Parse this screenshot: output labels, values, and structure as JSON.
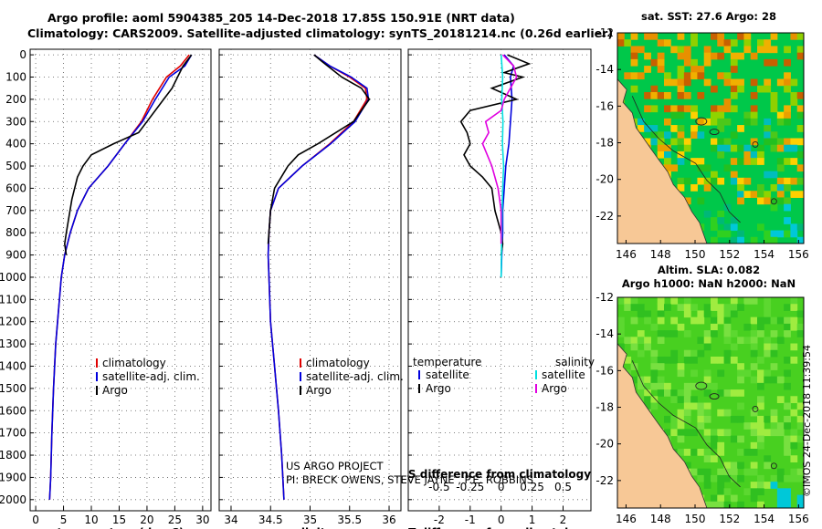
{
  "header": {
    "line1": "Argo profile: aoml 5904385_205 14-Dec-2018 17.85S 150.91E (NRT data)",
    "line2": "Climatology: CARS2009. Satellite-adjusted climatology: synTS_20181214.nc (0.26d earlier)"
  },
  "colors": {
    "climatology": "#e00000",
    "satellite": "#0000dd",
    "argo": "#000000",
    "sal_diff": "#00e0e0",
    "temp_diff": "#e000e0"
  },
  "chart_data": [
    {
      "type": "line",
      "id": "temperature",
      "xlabel": "temperature (deg C)",
      "ylabel": "",
      "xlim": [
        -1,
        31.5
      ],
      "ylim": [
        2050,
        0
      ],
      "xticks": [
        0,
        5,
        10,
        15,
        20,
        25,
        30
      ],
      "yticks": [
        0,
        100,
        200,
        300,
        400,
        500,
        600,
        700,
        800,
        900,
        1000,
        1100,
        1200,
        1300,
        1400,
        1500,
        1600,
        1700,
        1800,
        1900,
        2000
      ],
      "legend": [
        "climatology",
        "satellite-adj. clim.",
        "Argo"
      ],
      "series": [
        {
          "name": "climatology",
          "color": "#e00000",
          "x": [
            27.6,
            26,
            23.5,
            21,
            19,
            16,
            13,
            9.5,
            7.5,
            6.2,
            5.2,
            4.6,
            3.6,
            3.2,
            2.9,
            2.7,
            2.5
          ],
          "y": [
            0,
            50,
            100,
            200,
            300,
            400,
            500,
            600,
            700,
            800,
            900,
            1000,
            1300,
            1500,
            1700,
            1900,
            2000
          ]
        },
        {
          "name": "satellite-adj. clim.",
          "color": "#0000dd",
          "x": [
            28,
            26.8,
            24,
            21.5,
            19.2,
            16,
            13,
            9.5,
            7.5,
            6.2,
            5.2,
            4.6,
            3.6,
            3.2,
            2.9,
            2.7,
            2.5
          ],
          "y": [
            0,
            50,
            100,
            200,
            300,
            400,
            500,
            600,
            700,
            800,
            900,
            1000,
            1300,
            1500,
            1700,
            1900,
            2000
          ]
        },
        {
          "name": "Argo",
          "color": "#000000",
          "x": [
            28,
            26.5,
            25.5,
            24.5,
            23,
            20,
            18.5,
            14,
            10,
            8.5,
            7.5,
            6.5,
            5.5,
            5.2,
            5.5
          ],
          "y": [
            0,
            50,
            100,
            150,
            200,
            300,
            350,
            400,
            450,
            500,
            550,
            650,
            800,
            850,
            900
          ]
        }
      ]
    },
    {
      "type": "line",
      "id": "salinity",
      "xlabel": "salinity",
      "ylabel": "",
      "xlim": [
        33.85,
        36.15
      ],
      "ylim": [
        2050,
        0
      ],
      "xticks": [
        34,
        34.5,
        35,
        35.5,
        36
      ],
      "legend": [
        "climatology",
        "satellite-adj. clim.",
        "Argo"
      ],
      "series": [
        {
          "name": "climatology",
          "color": "#e00000",
          "x": [
            35.05,
            35.25,
            35.5,
            35.7,
            35.72,
            35.55,
            35.25,
            34.9,
            34.6,
            34.5,
            34.48,
            34.47,
            34.48,
            34.5,
            34.55,
            34.6,
            34.64,
            34.67
          ],
          "y": [
            0,
            50,
            100,
            150,
            200,
            300,
            400,
            500,
            600,
            700,
            800,
            900,
            1000,
            1200,
            1400,
            1600,
            1800,
            2000
          ]
        },
        {
          "name": "satellite-adj. clim.",
          "color": "#0000dd",
          "x": [
            35.05,
            35.25,
            35.52,
            35.72,
            35.74,
            35.57,
            35.26,
            34.9,
            34.6,
            34.5,
            34.48,
            34.47,
            34.48,
            34.5,
            34.55,
            34.6,
            34.64,
            34.67
          ],
          "y": [
            0,
            50,
            100,
            150,
            200,
            300,
            400,
            500,
            600,
            700,
            800,
            900,
            1000,
            1200,
            1400,
            1600,
            1800,
            2000
          ]
        },
        {
          "name": "Argo",
          "color": "#000000",
          "x": [
            35.05,
            35.15,
            35.4,
            35.65,
            35.75,
            35.55,
            35.1,
            34.85,
            34.72,
            34.55,
            34.5,
            34.47
          ],
          "y": [
            0,
            30,
            100,
            150,
            200,
            300,
            400,
            450,
            500,
            600,
            700,
            850
          ]
        }
      ],
      "annotations": [
        "US ARGO PROJECT",
        "PI: BRECK OWENS, STEVE JAYNE , P.E. ROBBINS"
      ]
    },
    {
      "type": "line",
      "id": "differences",
      "xlabel": "T difference from climatology",
      "x2label": "S difference from climatology",
      "xlim": [
        -3,
        2.9
      ],
      "ylim": [
        2050,
        0
      ],
      "xticks": [
        -2,
        -1,
        0,
        1,
        2
      ],
      "x2ticks": [
        -0.5,
        -0.25,
        0,
        0.25,
        0.5
      ],
      "x2ticklabels": [
        "-0.5",
        "-0.25",
        "0",
        "0.25",
        "0.5"
      ],
      "legend_temperature_title": "temperature",
      "legend_salinity_title": "salinity",
      "legend_left": [
        "satellite",
        "Argo"
      ],
      "legend_right": [
        "satellite",
        "Argo"
      ],
      "series": [
        {
          "name": "temperature satellite",
          "color": "#0000dd",
          "x": [
            0.1,
            0.4,
            0.3,
            0.35,
            0.3,
            0.25,
            0.15,
            0.1,
            0.05,
            0.05,
            0.02,
            0
          ],
          "y": [
            0,
            50,
            100,
            200,
            300,
            400,
            500,
            600,
            700,
            800,
            900,
            1000
          ]
        },
        {
          "name": "temperature Argo",
          "color": "#000000",
          "x": [
            0.2,
            0.9,
            0.1,
            0.7,
            -0.3,
            0.5,
            -1.0,
            -1.3,
            -1.1,
            -1.0,
            -1.2,
            -1.0,
            -0.6,
            -0.3,
            -0.2,
            0,
            0.05,
            0
          ],
          "y": [
            0,
            40,
            80,
            100,
            150,
            200,
            250,
            300,
            350,
            400,
            450,
            500,
            550,
            600,
            700,
            800,
            850,
            900
          ]
        },
        {
          "name": "salinity satellite",
          "color": "#00e0e0",
          "x": [
            0,
            0.05,
            0.02,
            0.06,
            0.04,
            0.08,
            0.05,
            0.03,
            0.02,
            0.01,
            0
          ],
          "y": [
            0,
            100,
            200,
            300,
            400,
            500,
            600,
            700,
            800,
            900,
            1000
          ]
        },
        {
          "name": "salinity Argo",
          "color": "#e000e0",
          "x": [
            0.05,
            0.4,
            0.5,
            0.1,
            0.0,
            -0.5,
            -0.4,
            -0.6,
            -0.3,
            -0.1,
            0.0,
            0.0
          ],
          "y": [
            0,
            50,
            100,
            200,
            250,
            300,
            350,
            400,
            500,
            600,
            700,
            850
          ]
        }
      ]
    },
    {
      "type": "heatmap",
      "id": "sst-map",
      "title": "sat. SST: 27.6 Argo: 28",
      "xlim": [
        145.5,
        156.3
      ],
      "ylim": [
        -23.5,
        -12
      ],
      "xticks": [
        146,
        148,
        150,
        152,
        154,
        156
      ],
      "yticks": [
        -12,
        -14,
        -16,
        -18,
        -20,
        -22
      ],
      "argo_location": [
        150.91,
        -17.85
      ]
    },
    {
      "type": "heatmap",
      "id": "sla-map",
      "title": "Altim. SLA: 0.082",
      "subtitle": "Argo h1000: NaN h2000: NaN",
      "xlim": [
        145.5,
        156.3
      ],
      "ylim": [
        -23.5,
        -12
      ],
      "xticks": [
        146,
        148,
        150,
        152,
        154,
        156
      ],
      "yticks": [
        -12,
        -14,
        -16,
        -18,
        -20,
        -22
      ],
      "argo_location": [
        150.91,
        -17.85
      ]
    }
  ],
  "footer": {
    "credit": "©IMOS 24-Dec-2018 11:39:54"
  }
}
